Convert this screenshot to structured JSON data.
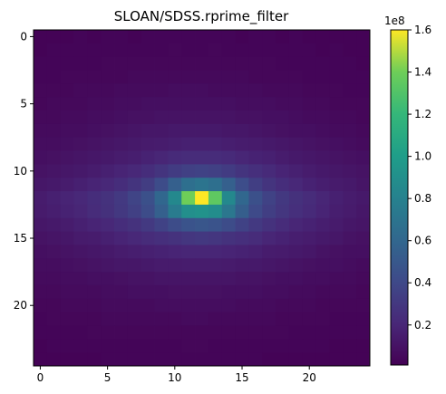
{
  "chart_data": {
    "type": "heatmap",
    "title": "SLOAN/SDSS.rprime_filter",
    "xlabel": "",
    "ylabel": "",
    "shape": [
      25,
      25
    ],
    "x_ticks": [
      0,
      5,
      10,
      15,
      20
    ],
    "y_ticks": [
      0,
      5,
      10,
      15,
      20
    ],
    "origin": "upper",
    "colormap": "viridis",
    "colorbar": {
      "range": [
        0.01,
        1.6
      ],
      "ticks": [
        0.2,
        0.4,
        0.6,
        0.8,
        1.0,
        1.2,
        1.4,
        1.6
      ],
      "tick_labels": [
        "0.2",
        "0.4",
        "0.6",
        "0.8",
        "1.0",
        "1.2",
        "1.4",
        "1.6"
      ],
      "offset_label": "1e8"
    },
    "peak": {
      "row": 12,
      "col": 12,
      "value": 1.6
    },
    "values": [
      [
        0.02,
        0.02,
        0.02,
        0.03,
        0.02,
        0.03,
        0.03,
        0.02,
        0.03,
        0.03,
        0.03,
        0.03,
        0.03,
        0.03,
        0.03,
        0.02,
        0.03,
        0.03,
        0.02,
        0.03,
        0.02,
        0.02,
        0.02,
        0.02,
        0.02
      ],
      [
        0.02,
        0.03,
        0.03,
        0.03,
        0.03,
        0.03,
        0.03,
        0.03,
        0.03,
        0.03,
        0.04,
        0.03,
        0.03,
        0.04,
        0.03,
        0.03,
        0.03,
        0.03,
        0.03,
        0.03,
        0.03,
        0.02,
        0.03,
        0.02,
        0.02
      ],
      [
        0.03,
        0.03,
        0.03,
        0.03,
        0.03,
        0.04,
        0.04,
        0.04,
        0.04,
        0.04,
        0.04,
        0.04,
        0.04,
        0.04,
        0.04,
        0.04,
        0.04,
        0.04,
        0.03,
        0.03,
        0.03,
        0.03,
        0.03,
        0.03,
        0.02
      ],
      [
        0.03,
        0.03,
        0.04,
        0.04,
        0.04,
        0.04,
        0.04,
        0.05,
        0.05,
        0.05,
        0.05,
        0.05,
        0.05,
        0.05,
        0.05,
        0.05,
        0.04,
        0.04,
        0.04,
        0.04,
        0.03,
        0.03,
        0.03,
        0.03,
        0.03
      ],
      [
        0.04,
        0.04,
        0.04,
        0.05,
        0.05,
        0.05,
        0.06,
        0.06,
        0.06,
        0.06,
        0.07,
        0.07,
        0.07,
        0.06,
        0.06,
        0.06,
        0.06,
        0.05,
        0.05,
        0.05,
        0.04,
        0.04,
        0.04,
        0.03,
        0.03
      ],
      [
        0.04,
        0.05,
        0.05,
        0.05,
        0.06,
        0.06,
        0.07,
        0.07,
        0.08,
        0.08,
        0.08,
        0.08,
        0.08,
        0.08,
        0.08,
        0.07,
        0.07,
        0.07,
        0.06,
        0.06,
        0.05,
        0.05,
        0.04,
        0.04,
        0.04
      ],
      [
        0.05,
        0.05,
        0.06,
        0.06,
        0.07,
        0.07,
        0.08,
        0.09,
        0.09,
        0.1,
        0.1,
        0.1,
        0.1,
        0.1,
        0.1,
        0.09,
        0.09,
        0.08,
        0.08,
        0.07,
        0.06,
        0.06,
        0.05,
        0.05,
        0.04
      ],
      [
        0.06,
        0.06,
        0.07,
        0.07,
        0.08,
        0.09,
        0.1,
        0.11,
        0.12,
        0.12,
        0.13,
        0.13,
        0.13,
        0.13,
        0.12,
        0.12,
        0.11,
        0.1,
        0.09,
        0.08,
        0.08,
        0.07,
        0.06,
        0.06,
        0.05
      ],
      [
        0.07,
        0.07,
        0.08,
        0.09,
        0.1,
        0.11,
        0.12,
        0.13,
        0.14,
        0.15,
        0.16,
        0.17,
        0.17,
        0.17,
        0.16,
        0.15,
        0.14,
        0.13,
        0.12,
        0.11,
        0.1,
        0.09,
        0.08,
        0.07,
        0.06
      ],
      [
        0.08,
        0.09,
        0.1,
        0.11,
        0.12,
        0.13,
        0.15,
        0.16,
        0.18,
        0.2,
        0.22,
        0.23,
        0.23,
        0.23,
        0.22,
        0.2,
        0.18,
        0.17,
        0.15,
        0.13,
        0.12,
        0.11,
        0.1,
        0.09,
        0.08
      ],
      [
        0.1,
        0.11,
        0.12,
        0.13,
        0.15,
        0.17,
        0.19,
        0.21,
        0.24,
        0.28,
        0.32,
        0.35,
        0.36,
        0.35,
        0.32,
        0.28,
        0.25,
        0.22,
        0.19,
        0.17,
        0.15,
        0.13,
        0.12,
        0.11,
        0.1
      ],
      [
        0.12,
        0.13,
        0.15,
        0.17,
        0.19,
        0.21,
        0.24,
        0.28,
        0.33,
        0.42,
        0.55,
        0.66,
        0.7,
        0.66,
        0.55,
        0.43,
        0.34,
        0.28,
        0.24,
        0.21,
        0.18,
        0.16,
        0.14,
        0.13,
        0.11
      ],
      [
        0.15,
        0.17,
        0.19,
        0.21,
        0.24,
        0.27,
        0.31,
        0.37,
        0.45,
        0.6,
        0.85,
        1.4,
        1.6,
        1.35,
        0.85,
        0.6,
        0.45,
        0.36,
        0.3,
        0.26,
        0.23,
        0.2,
        0.17,
        0.15,
        0.13
      ],
      [
        0.14,
        0.16,
        0.18,
        0.2,
        0.23,
        0.26,
        0.3,
        0.35,
        0.42,
        0.55,
        0.75,
        0.9,
        0.92,
        0.88,
        0.72,
        0.54,
        0.41,
        0.34,
        0.29,
        0.25,
        0.22,
        0.19,
        0.16,
        0.14,
        0.12
      ],
      [
        0.12,
        0.13,
        0.15,
        0.17,
        0.19,
        0.21,
        0.24,
        0.27,
        0.31,
        0.36,
        0.42,
        0.47,
        0.49,
        0.47,
        0.42,
        0.36,
        0.31,
        0.27,
        0.23,
        0.2,
        0.18,
        0.16,
        0.14,
        0.12,
        0.11
      ],
      [
        0.1,
        0.11,
        0.12,
        0.14,
        0.15,
        0.17,
        0.19,
        0.21,
        0.23,
        0.25,
        0.27,
        0.29,
        0.3,
        0.29,
        0.27,
        0.25,
        0.23,
        0.2,
        0.18,
        0.16,
        0.15,
        0.13,
        0.12,
        0.1,
        0.09
      ],
      [
        0.08,
        0.09,
        0.1,
        0.11,
        0.12,
        0.13,
        0.15,
        0.16,
        0.17,
        0.18,
        0.19,
        0.2,
        0.2,
        0.2,
        0.19,
        0.18,
        0.17,
        0.15,
        0.14,
        0.13,
        0.12,
        0.1,
        0.09,
        0.08,
        0.08
      ],
      [
        0.07,
        0.07,
        0.08,
        0.09,
        0.1,
        0.11,
        0.12,
        0.12,
        0.13,
        0.14,
        0.14,
        0.15,
        0.15,
        0.15,
        0.14,
        0.13,
        0.13,
        0.12,
        0.11,
        0.1,
        0.09,
        0.08,
        0.08,
        0.07,
        0.06
      ],
      [
        0.06,
        0.06,
        0.07,
        0.07,
        0.08,
        0.08,
        0.09,
        0.1,
        0.1,
        0.11,
        0.11,
        0.11,
        0.11,
        0.11,
        0.11,
        0.1,
        0.1,
        0.09,
        0.08,
        0.08,
        0.07,
        0.07,
        0.06,
        0.06,
        0.05
      ],
      [
        0.05,
        0.05,
        0.06,
        0.06,
        0.06,
        0.07,
        0.07,
        0.08,
        0.08,
        0.08,
        0.09,
        0.09,
        0.09,
        0.09,
        0.08,
        0.08,
        0.08,
        0.07,
        0.07,
        0.06,
        0.06,
        0.05,
        0.05,
        0.05,
        0.04
      ],
      [
        0.04,
        0.04,
        0.05,
        0.05,
        0.05,
        0.06,
        0.06,
        0.06,
        0.06,
        0.07,
        0.07,
        0.07,
        0.07,
        0.07,
        0.07,
        0.06,
        0.06,
        0.06,
        0.05,
        0.05,
        0.05,
        0.04,
        0.04,
        0.04,
        0.04
      ],
      [
        0.03,
        0.04,
        0.04,
        0.04,
        0.04,
        0.05,
        0.05,
        0.05,
        0.05,
        0.05,
        0.05,
        0.06,
        0.06,
        0.05,
        0.05,
        0.05,
        0.05,
        0.05,
        0.04,
        0.04,
        0.04,
        0.04,
        0.03,
        0.03,
        0.03
      ],
      [
        0.03,
        0.03,
        0.03,
        0.03,
        0.04,
        0.04,
        0.04,
        0.04,
        0.04,
        0.04,
        0.04,
        0.04,
        0.04,
        0.04,
        0.04,
        0.04,
        0.04,
        0.04,
        0.04,
        0.03,
        0.03,
        0.03,
        0.03,
        0.03,
        0.03
      ],
      [
        0.02,
        0.03,
        0.03,
        0.03,
        0.03,
        0.03,
        0.03,
        0.03,
        0.03,
        0.03,
        0.03,
        0.04,
        0.04,
        0.03,
        0.03,
        0.03,
        0.03,
        0.03,
        0.03,
        0.03,
        0.03,
        0.03,
        0.02,
        0.02,
        0.02
      ],
      [
        0.02,
        0.02,
        0.02,
        0.02,
        0.02,
        0.03,
        0.03,
        0.03,
        0.03,
        0.03,
        0.03,
        0.03,
        0.03,
        0.03,
        0.03,
        0.03,
        0.03,
        0.02,
        0.02,
        0.02,
        0.02,
        0.02,
        0.02,
        0.02,
        0.02
      ]
    ]
  }
}
